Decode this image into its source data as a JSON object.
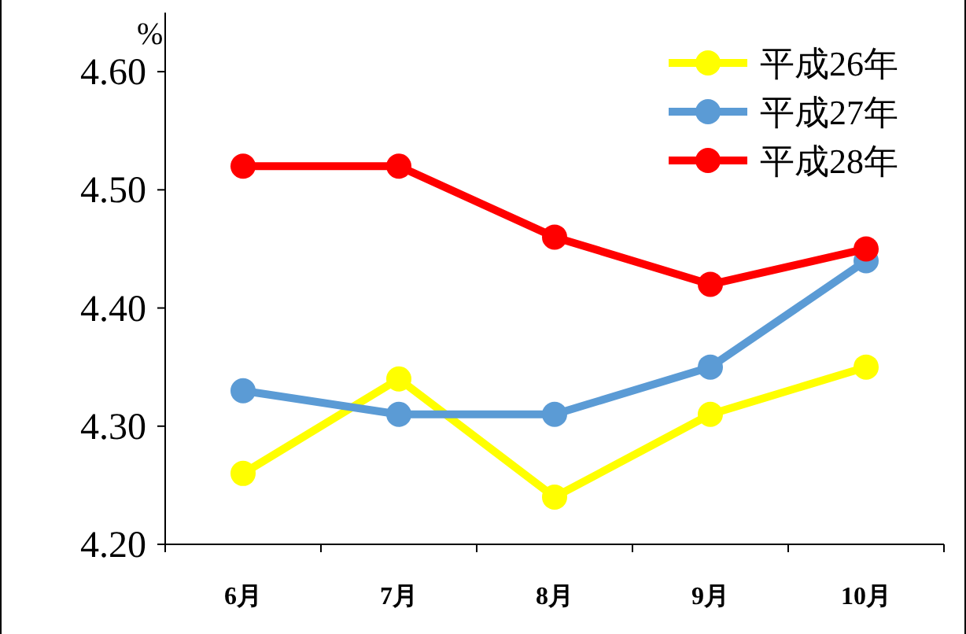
{
  "chart_data": {
    "type": "line",
    "ylabel": "%",
    "categories": [
      "6月",
      "7月",
      "8月",
      "9月",
      "10月"
    ],
    "series": [
      {
        "name": "平成26年",
        "color": "#ffff00",
        "values": [
          4.26,
          4.34,
          4.24,
          4.31,
          4.35
        ]
      },
      {
        "name": "平成27年",
        "color": "#5b9bd5",
        "values": [
          4.33,
          4.31,
          4.31,
          4.35,
          4.44
        ]
      },
      {
        "name": "平成28年",
        "color": "#ff0000",
        "values": [
          4.52,
          4.52,
          4.46,
          4.42,
          4.45
        ]
      }
    ],
    "ylim": [
      4.2,
      4.65
    ],
    "yticks": [
      {
        "value": 4.2,
        "label": "4.20"
      },
      {
        "value": 4.3,
        "label": "4.30"
      },
      {
        "value": 4.4,
        "label": "4.40"
      },
      {
        "value": 4.5,
        "label": "4.50"
      },
      {
        "value": 4.6,
        "label": "4.60"
      }
    ],
    "grid": false,
    "legend": "top right",
    "marker": "circle",
    "line_style": "solid"
  }
}
